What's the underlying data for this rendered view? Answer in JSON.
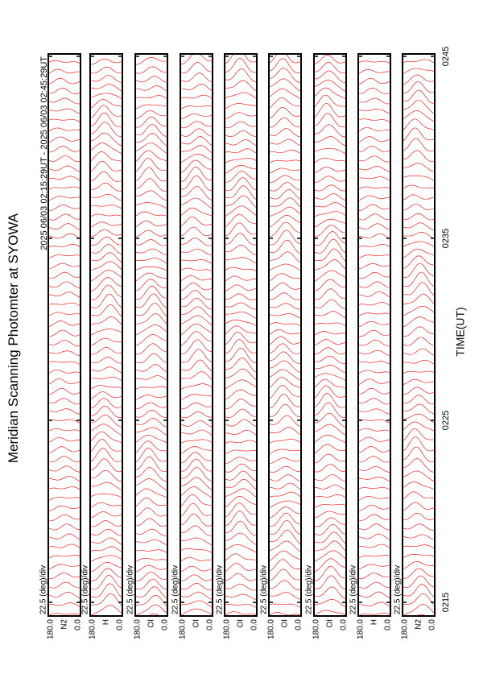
{
  "chart_data": {
    "type": "msp-stack",
    "title": "Meridian Scanning Photomter at SYOWA",
    "subtitle": "2025 06/03 02:15:29UT - 2025 06/03 02:45:29UT",
    "x_label": "TIME(UT)",
    "xlim": [
      14.25,
      45.13
    ],
    "xticks": [
      {
        "value": 15,
        "label": "0215"
      },
      {
        "value": 25,
        "label": "0225"
      },
      {
        "value": 35,
        "label": "0235"
      },
      {
        "value": 45,
        "label": "0245"
      }
    ],
    "color": "#ff0000",
    "panels": [
      {
        "name": "N2",
        "scale": "22.5 (deg)/div",
        "top_label": "180.0",
        "bottom_label": "0.0"
      },
      {
        "name": "H",
        "scale": "22.5 (deg)/div",
        "top_label": "180.0",
        "bottom_label": "0.0"
      },
      {
        "name": "OI",
        "scale": "22.5 (deg)/div",
        "top_label": "180.0",
        "bottom_label": "0.0"
      },
      {
        "name": "OI",
        "scale": "22.5 (deg)/div",
        "top_label": "180.0",
        "bottom_label": "0.0"
      },
      {
        "name": "OI",
        "scale": "22.5 (deg)/div",
        "top_label": "180.0",
        "bottom_label": "0.0"
      },
      {
        "name": "OI",
        "scale": "22.5 (deg)/div",
        "top_label": "180.0",
        "bottom_label": "0.0"
      },
      {
        "name": "OI",
        "scale": "22.5 (deg)/div",
        "top_label": "180.0",
        "bottom_label": "0.0"
      },
      {
        "name": "H",
        "scale": "22.5 (deg)/div",
        "top_label": "180.0",
        "bottom_label": "0.0"
      },
      {
        "name": "N2",
        "scale": "22.5 (deg)/div",
        "top_label": "180.0",
        "bottom_label": "0.0"
      }
    ]
  }
}
